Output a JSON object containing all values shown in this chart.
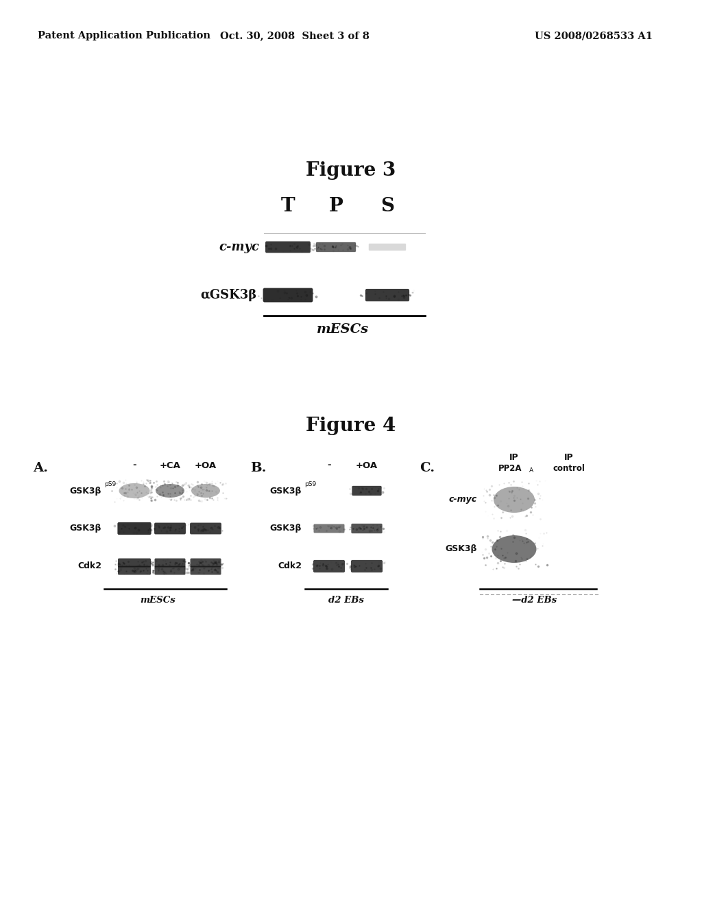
{
  "bg_color": "#ffffff",
  "header_left": "Patent Application Publication",
  "header_center": "Oct. 30, 2008  Sheet 3 of 8",
  "header_right": "US 2008/0268533 A1",
  "fig3_title": "Figure 3",
  "fig4_title": "Figure 4"
}
